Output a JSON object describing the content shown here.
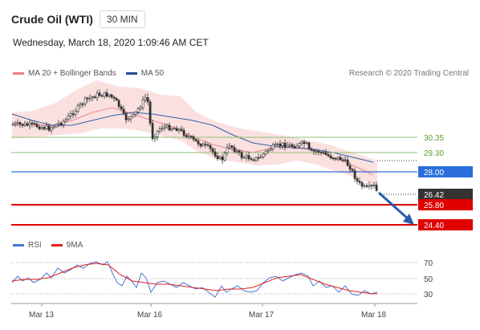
{
  "header": {
    "title": "Crude Oil (WTI)",
    "timeframe": "30 MIN"
  },
  "datetime": "Wednesday, March 18, 2020 1:09:46 AM CET",
  "legend": {
    "items": [
      {
        "label": "MA 20 + Bollinger Bands",
        "color": "#f08080"
      },
      {
        "label": "MA 50",
        "color": "#1f4e8c"
      }
    ],
    "credit": "Research © 2020 Trading Central"
  },
  "levels": [
    {
      "label": "30.35",
      "value": 30.35,
      "style": "green-text"
    },
    {
      "label": "29.30",
      "value": 29.3,
      "style": "green-text"
    },
    {
      "label": "28.00",
      "value": 28.0,
      "style": "blue-box"
    },
    {
      "label": "26.42",
      "value": 26.42,
      "style": "dark-box"
    },
    {
      "label": "25.80",
      "value": 25.8,
      "style": "red-box"
    },
    {
      "label": "24.40",
      "value": 24.4,
      "style": "red-box"
    }
  ],
  "rsi_legend": {
    "items": [
      {
        "label": "RSI",
        "color": "#4a78d0"
      },
      {
        "label": "9MA",
        "color": "#e02020"
      }
    ]
  },
  "rsi_levels": [
    "70",
    "50",
    "30"
  ],
  "x_labels": [
    "Mar 13",
    "Mar 16",
    "Mar 17",
    "Mar 18"
  ],
  "colors": {
    "up": "#ffffff",
    "down": "#333333",
    "support": "#e00000",
    "resistance_blue": "#2a6fdb",
    "green": "#8dc26f",
    "arrow": "#2a5ca8"
  }
}
